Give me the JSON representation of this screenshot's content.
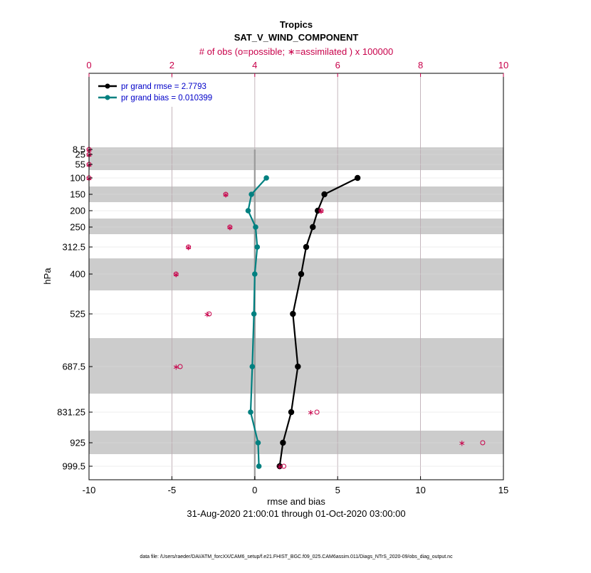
{
  "chart_data": {
    "type": "line",
    "title": "Tropics",
    "subtitle": "SAT_V_WIND_COMPONENT",
    "top_axis_label": "# of obs (o=possible; ∗=assimilated ) x 100000",
    "xlabel": "rmse and bias",
    "ylabel": "hPa",
    "date_range": "31-Aug-2020 21:00:01 through 01-Oct-2020 03:00:00",
    "footer": "data file: /Users/raeder/DAI/ATM_forcXX/CAM6_setup/f.e21.FHIST_BGC.f09_025.CAM6assim.011/Diags_NTrS_2020-09/obs_diag_output.nc",
    "xlim": [
      -10,
      15
    ],
    "xticks": [
      "-10",
      "-5",
      "0",
      "5",
      "10",
      "15"
    ],
    "top_xlim": [
      0,
      10
    ],
    "top_xticks": [
      "0",
      "2",
      "4",
      "6",
      "8",
      "10"
    ],
    "levels": [
      8.5,
      25,
      55,
      100,
      150,
      200,
      250,
      312.5,
      400,
      525,
      687.5,
      831.25,
      925,
      999.5
    ],
    "level_labels": [
      "8.5",
      "25",
      "55",
      "100",
      "150",
      "200",
      "250",
      "312.5",
      "400",
      "525",
      "687.5",
      "831.25",
      "925",
      "999.5"
    ],
    "series": [
      {
        "name": "pr grand rmse = 2.7793",
        "color": "#000000",
        "levels": [
          100,
          150,
          200,
          250,
          312.5,
          400,
          525,
          687.5,
          831.25,
          925,
          999.5
        ],
        "values": [
          6.2,
          4.2,
          3.8,
          3.5,
          3.1,
          2.8,
          2.3,
          2.6,
          2.2,
          1.7,
          1.5
        ]
      },
      {
        "name": "pr grand bias = 0.010399",
        "color": "#008080",
        "levels": [
          100,
          150,
          200,
          250,
          312.5,
          400,
          525,
          687.5,
          831.25,
          925,
          999.5
        ],
        "values": [
          0.7,
          -0.2,
          -0.4,
          0.05,
          0.15,
          0.0,
          -0.05,
          -0.15,
          -0.25,
          0.2,
          0.25
        ]
      }
    ],
    "obs_possible": {
      "color": "#c8004a",
      "levels": [
        8.5,
        25,
        55,
        100,
        150,
        200,
        250,
        312.5,
        400,
        525,
        687.5,
        831.25,
        925,
        999.5
      ],
      "values": [
        0.0,
        0.0,
        0.0,
        0.0,
        3.3,
        5.6,
        3.4,
        2.4,
        2.1,
        2.9,
        2.2,
        5.5,
        9.5,
        4.7
      ]
    },
    "obs_assimilated": {
      "color": "#c8004a",
      "levels": [
        8.5,
        25,
        55,
        100,
        150,
        200,
        250,
        312.5,
        400,
        525,
        687.5,
        831.25,
        925,
        999.5
      ],
      "values": [
        0.0,
        0.0,
        0.0,
        0.0,
        3.3,
        5.6,
        3.4,
        2.4,
        2.1,
        2.85,
        2.1,
        5.35,
        9.0,
        4.6
      ]
    },
    "grid": true,
    "legend_position": "top-left"
  }
}
